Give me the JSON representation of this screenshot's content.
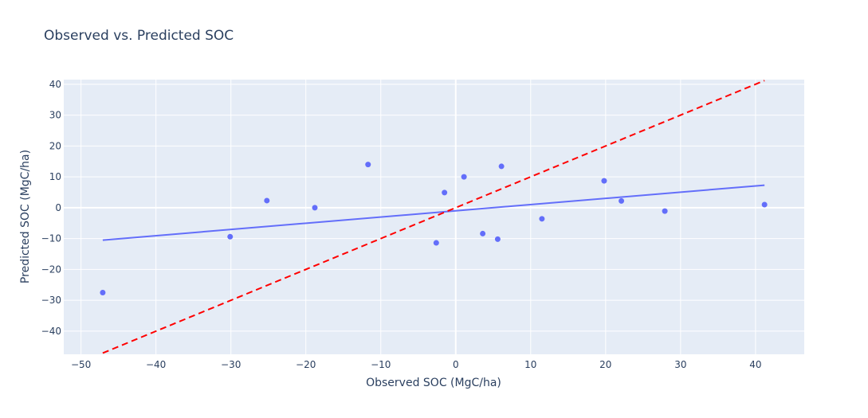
{
  "chart_data": {
    "type": "scatter",
    "title": "Observed vs. Predicted SOC",
    "xlabel": "Observed SOC (MgC/ha)",
    "ylabel": "Predicted SOC (MgC/ha)",
    "xlim": [
      -52.3,
      46.5
    ],
    "ylim": [
      -47.5,
      41.5
    ],
    "xticks": [
      -50,
      -40,
      -30,
      -20,
      -10,
      0,
      10,
      20,
      30,
      40
    ],
    "yticks": [
      -40,
      -30,
      -20,
      -10,
      0,
      10,
      20,
      30,
      40
    ],
    "xtick_labels": [
      "−50",
      "−40",
      "−30",
      "−20",
      "−10",
      "0",
      "10",
      "20",
      "30",
      "40"
    ],
    "ytick_labels": [
      "−40",
      "−30",
      "−20",
      "−10",
      "0",
      "10",
      "20",
      "30",
      "40"
    ],
    "grid": true,
    "points": [
      {
        "x": -47.1,
        "y": -27.5
      },
      {
        "x": -30.1,
        "y": -9.4
      },
      {
        "x": -25.2,
        "y": 2.3
      },
      {
        "x": -18.8,
        "y": 0.0
      },
      {
        "x": -11.7,
        "y": 14.0
      },
      {
        "x": -2.6,
        "y": -11.4
      },
      {
        "x": -1.5,
        "y": 4.9
      },
      {
        "x": 1.1,
        "y": 10.0
      },
      {
        "x": 3.6,
        "y": -8.4
      },
      {
        "x": 5.6,
        "y": -10.2
      },
      {
        "x": 6.1,
        "y": 13.4
      },
      {
        "x": 11.5,
        "y": -3.6
      },
      {
        "x": 19.8,
        "y": 8.7
      },
      {
        "x": 22.1,
        "y": 2.2
      },
      {
        "x": 27.9,
        "y": -1.1
      },
      {
        "x": 41.2,
        "y": 1.0
      }
    ],
    "fit_line": {
      "x": [
        -47.1,
        41.2
      ],
      "y": [
        -10.5,
        7.3
      ]
    },
    "identity_line": {
      "x": [
        -47.1,
        41.2
      ],
      "y": [
        -47.1,
        41.2
      ]
    },
    "colors": {
      "points": "#636efa",
      "fit_line": "#636efa",
      "identity_line": "#ff0000",
      "plot_bg": "#e5ecf6",
      "grid": "#ffffff",
      "text": "#2a3f5f"
    }
  }
}
